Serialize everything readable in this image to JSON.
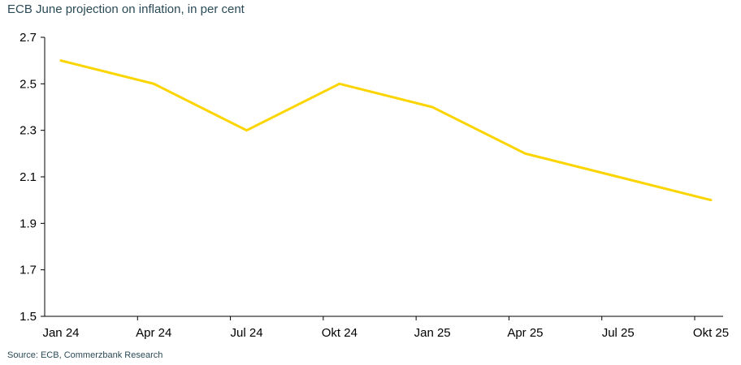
{
  "title": "ECB June projection on inflation, in per cent",
  "source": "Source: ECB, Commerzbank Research",
  "chart_data": {
    "type": "line",
    "title": "ECB June projection on inflation, in per cent",
    "xlabel": "",
    "ylabel": "",
    "categories": [
      "Jan 24",
      "Apr 24",
      "Jul 24",
      "Okt 24",
      "Jan 25",
      "Apr 25",
      "Jul 25",
      "Okt 25"
    ],
    "series": [
      {
        "values": [
          2.6,
          2.5,
          2.3,
          2.5,
          2.4,
          2.2,
          2.1,
          2.0
        ],
        "color": "#fcd500"
      }
    ],
    "ylim": [
      1.5,
      2.7
    ],
    "yticks": [
      1.5,
      1.7,
      1.9,
      2.1,
      2.3,
      2.5,
      2.7
    ],
    "ytick_labels": [
      "1.5",
      "1.7",
      "1.9",
      "2.1",
      "2.3",
      "2.5",
      "2.7"
    ],
    "grid": false,
    "legend": "none"
  }
}
